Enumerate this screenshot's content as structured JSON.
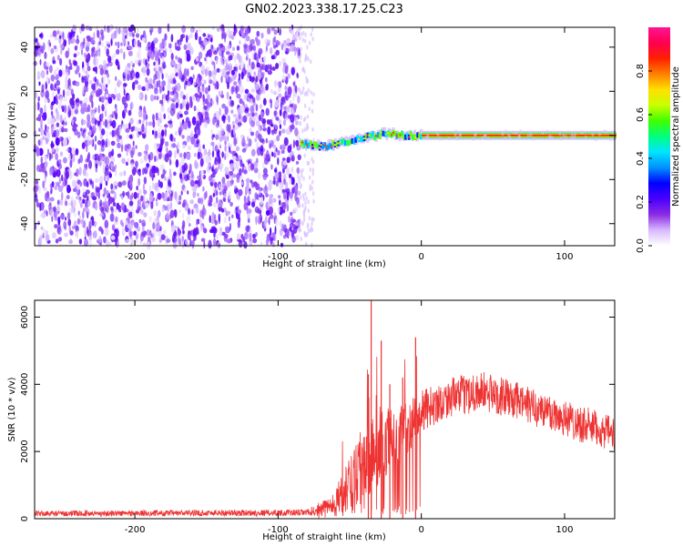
{
  "title": "GN02.2023.338.17.25.C23",
  "chart_data": [
    {
      "type": "heatmap",
      "xlabel": "Height of straight line (km)",
      "ylabel": "Frequency (Hz)",
      "xlim": [
        -270,
        135
      ],
      "ylim": [
        -50,
        49
      ],
      "xticks": [
        -200,
        -100,
        0,
        100
      ],
      "yticks": [
        -40,
        -20,
        0,
        20,
        40
      ],
      "colorbar": {
        "label": "Normalized spectral amplitude",
        "ticks": [
          0.0,
          0.2,
          0.4,
          0.6,
          0.8
        ],
        "range": [
          0,
          1
        ],
        "colors": [
          "#ffffff",
          "#d8b8ff",
          "#8a2be2",
          "#4b00ff",
          "#0000ff",
          "#0090ff",
          "#00e5ff",
          "#00ff80",
          "#40ff00",
          "#c8ff00",
          "#ffe000",
          "#ff8000",
          "#ff2000",
          "#ff0050",
          "#ff1493"
        ]
      },
      "regions": [
        {
          "x_from": -270,
          "x_to": -85,
          "pattern": "broadband noise, amplitude ~0.05-0.15 across all frequencies"
        },
        {
          "x_from": -85,
          "x_to": -75,
          "pattern": "sparse noise"
        },
        {
          "x_from": -85,
          "x_to": 0,
          "pattern": "narrow band rising from about -5 Hz to 0 Hz, amplitude ~0.3-0.7"
        },
        {
          "x_from": 0,
          "x_to": 135,
          "pattern": "narrow band at 0 Hz, amplitude ~0.9"
        }
      ],
      "band_points": [
        {
          "x": -85,
          "y": -4
        },
        {
          "x": -70,
          "y": -5
        },
        {
          "x": -55,
          "y": -3
        },
        {
          "x": -40,
          "y": -1
        },
        {
          "x": -25,
          "y": 1
        },
        {
          "x": -10,
          "y": 0
        },
        {
          "x": 0,
          "y": 0
        },
        {
          "x": 135,
          "y": 0
        }
      ]
    },
    {
      "type": "line",
      "xlabel": "Height of straight line (km)",
      "ylabel": "SNR (10 * v/v)",
      "xlim": [
        -270,
        135
      ],
      "ylim": [
        0,
        6500
      ],
      "xticks": [
        -200,
        -100,
        0,
        100
      ],
      "yticks": [
        0,
        2000,
        4000,
        6000
      ],
      "color": "#ee3333",
      "envelope": [
        {
          "x": -270,
          "base": 150,
          "noise": 120
        },
        {
          "x": -80,
          "base": 180,
          "noise": 140
        },
        {
          "x": -65,
          "base": 350,
          "noise": 400
        },
        {
          "x": -50,
          "base": 900,
          "noise": 1200
        },
        {
          "x": -40,
          "base": 1700,
          "noise": 1800
        },
        {
          "x": -25,
          "base": 2200,
          "noise": 1500
        },
        {
          "x": -10,
          "base": 2700,
          "noise": 1200
        },
        {
          "x": 0,
          "base": 3200,
          "noise": 900
        },
        {
          "x": 20,
          "base": 3600,
          "noise": 800
        },
        {
          "x": 40,
          "base": 3800,
          "noise": 900
        },
        {
          "x": 60,
          "base": 3600,
          "noise": 800
        },
        {
          "x": 80,
          "base": 3300,
          "noise": 800
        },
        {
          "x": 100,
          "base": 3000,
          "noise": 800
        },
        {
          "x": 120,
          "base": 2700,
          "noise": 800
        },
        {
          "x": 135,
          "base": 2500,
          "noise": 700
        }
      ],
      "spikes": [
        {
          "x": -35,
          "y": 6500
        },
        {
          "x": -37,
          "y": 4300
        },
        {
          "x": -28,
          "y": 5300
        },
        {
          "x": -22,
          "y": 4000
        },
        {
          "x": -13,
          "y": 4200
        },
        {
          "x": -4,
          "y": 5400
        }
      ]
    }
  ]
}
